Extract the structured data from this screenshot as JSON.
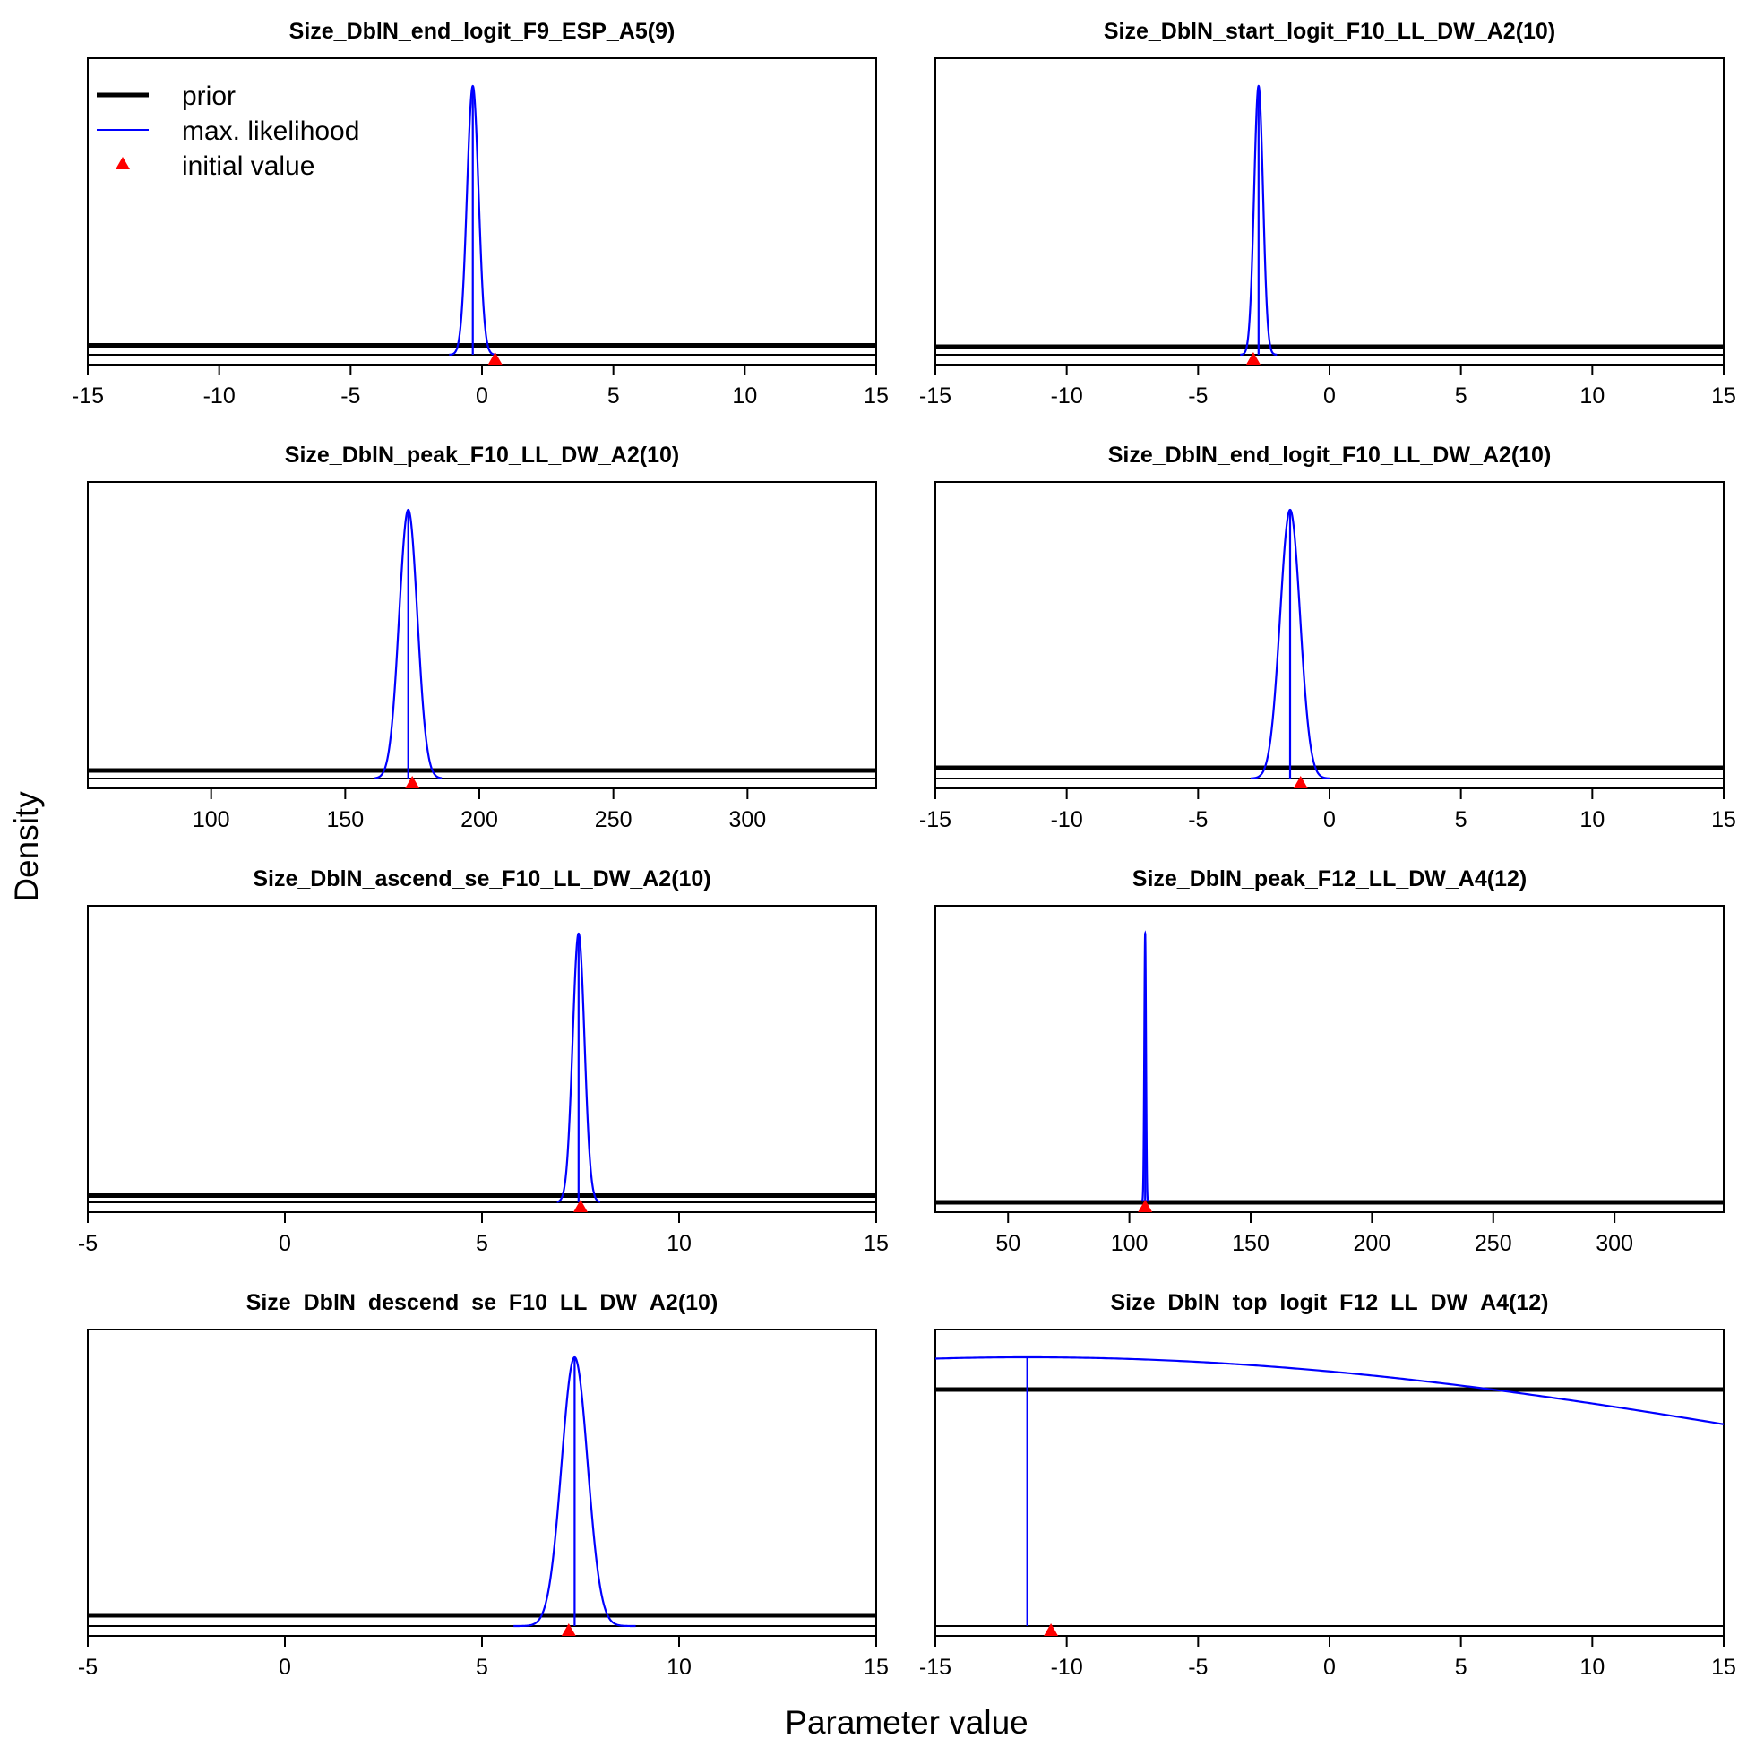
{
  "figure": {
    "ylabel": "Density",
    "xlabel": "Parameter value",
    "legend": {
      "placement": "top-left of first panel",
      "entries": [
        {
          "label": "prior",
          "color": "#000000",
          "style": "thick-line"
        },
        {
          "label": "max. likelihood",
          "color": "#0000ff",
          "style": "thin-line"
        },
        {
          "label": "initial value",
          "color": "#ff0000",
          "style": "triangle"
        }
      ]
    }
  },
  "chart_data": [
    {
      "type": "line",
      "title": "Size_DblN_end_logit_F9_ESP_A5(9)",
      "xlim": [
        -15,
        15
      ],
      "xticks": [
        -15,
        -10,
        -5,
        0,
        5,
        10,
        15
      ],
      "tick_labels": [
        "-15",
        "-10",
        "-5",
        "0",
        "5",
        "10",
        "15"
      ],
      "prior": {
        "shape": "flat",
        "level": 0.035
      },
      "mle": {
        "mean": -0.35,
        "sd": 0.22,
        "x_min": -1.25,
        "x_max": 0.55
      },
      "initial_value": 0.5
    },
    {
      "type": "line",
      "title": "Size_DblN_start_logit_F10_LL_DW_A2(10)",
      "xlim": [
        -15,
        15
      ],
      "xticks": [
        -15,
        -10,
        -5,
        0,
        5,
        10,
        15
      ],
      "tick_labels": [
        "-15",
        "-10",
        "-5",
        "0",
        "5",
        "10",
        "15"
      ],
      "prior": {
        "shape": "flat",
        "level": 0.03
      },
      "mle": {
        "mean": -2.7,
        "sd": 0.17,
        "x_min": -3.4,
        "x_max": -2.0
      },
      "initial_value": -2.9
    },
    {
      "type": "line",
      "title": "Size_DblN_peak_F10_LL_DW_A2(10)",
      "xlim": [
        54,
        348
      ],
      "xticks": [
        100,
        150,
        200,
        250,
        300
      ],
      "tick_labels": [
        "100",
        "150",
        "200",
        "250",
        "300"
      ],
      "prior": {
        "shape": "flat",
        "level": 0.03
      },
      "mle": {
        "mean": 173.5,
        "sd": 3.4,
        "x_min": 161,
        "x_max": 186
      },
      "initial_value": 175
    },
    {
      "type": "line",
      "title": "Size_DblN_end_logit_F10_LL_DW_A2(10)",
      "xlim": [
        -15,
        15
      ],
      "xticks": [
        -15,
        -10,
        -5,
        0,
        5,
        10,
        15
      ],
      "tick_labels": [
        "-15",
        "-10",
        "-5",
        "0",
        "5",
        "10",
        "15"
      ],
      "prior": {
        "shape": "flat",
        "level": 0.04
      },
      "mle": {
        "mean": -1.5,
        "sd": 0.38,
        "x_min": -3.0,
        "x_max": 0.0
      },
      "initial_value": -1.1
    },
    {
      "type": "line",
      "title": "Size_DblN_ascend_se_F10_LL_DW_A2(10)",
      "xlim": [
        -5,
        15
      ],
      "xticks": [
        -5,
        0,
        5,
        10,
        15
      ],
      "tick_labels": [
        "-5",
        "0",
        "5",
        "10",
        "15"
      ],
      "prior": {
        "shape": "flat",
        "level": 0.025
      },
      "mle": {
        "mean": 7.45,
        "sd": 0.15,
        "x_min": 6.9,
        "x_max": 8.0
      },
      "initial_value": 7.5
    },
    {
      "type": "line",
      "title": "Size_DblN_peak_F12_LL_DW_A4(12)",
      "xlim": [
        20,
        345
      ],
      "xticks": [
        50,
        100,
        150,
        200,
        250,
        300
      ],
      "tick_labels": [
        "50",
        "100",
        "150",
        "200",
        "250",
        "300"
      ],
      "prior": {
        "shape": "flat",
        "level": 0.0
      },
      "mle": {
        "mean": 106.5,
        "sd": 0.35,
        "x_min": 105.3,
        "x_max": 107.7
      },
      "initial_value": 106.5
    },
    {
      "type": "line",
      "title": "Size_DblN_descend_se_F10_LL_DW_A2(10)",
      "xlim": [
        -5,
        15
      ],
      "xticks": [
        -5,
        0,
        5,
        10,
        15
      ],
      "tick_labels": [
        "-5",
        "0",
        "5",
        "10",
        "15"
      ],
      "prior": {
        "shape": "flat",
        "level": 0.04
      },
      "mle": {
        "mean": 7.35,
        "sd": 0.33,
        "x_min": 5.8,
        "x_max": 8.9
      },
      "initial_value": 7.2
    },
    {
      "type": "line",
      "title": "Size_DblN_top_logit_F12_LL_DW_A4(12)",
      "xlim": [
        -15,
        15
      ],
      "xticks": [
        -15,
        -10,
        -5,
        0,
        5,
        10,
        15
      ],
      "tick_labels": [
        "-15",
        "-10",
        "-5",
        "0",
        "5",
        "10",
        "15"
      ],
      "prior": {
        "shape": "flat",
        "level": 0.88
      },
      "mle": {
        "mean": -11.5,
        "sd": 35,
        "x_min": -15,
        "x_max": 15
      },
      "initial_value": -10.6
    }
  ]
}
